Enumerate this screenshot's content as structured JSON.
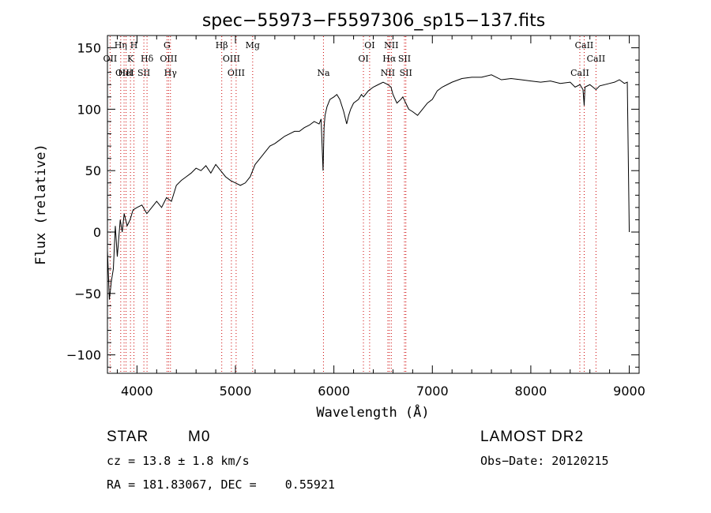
{
  "chart_data": {
    "type": "line",
    "title": "spec−55973−F5597306_sp15−137.fits",
    "xlabel": "Wavelength (Å)",
    "ylabel": "Flux (relative)",
    "xlim": [
      3700,
      9100
    ],
    "ylim": [
      -115,
      160
    ],
    "x_ticks": [
      4000,
      5000,
      6000,
      7000,
      8000,
      9000
    ],
    "y_ticks": [
      -100,
      -50,
      0,
      50,
      100,
      150
    ],
    "y_tick_labels": [
      "−100",
      "−50",
      "0",
      "50",
      "100",
      "150"
    ],
    "grid": false,
    "colors": {
      "line": "#000000",
      "marker": "#cc0000"
    },
    "series": [
      {
        "x": [
          3700,
          3720,
          3740,
          3760,
          3780,
          3800,
          3830,
          3850,
          3870,
          3900,
          3930,
          3960,
          4000,
          4050,
          4100,
          4150,
          4200,
          4250,
          4300,
          4350,
          4400,
          4450,
          4500,
          4550,
          4600,
          4650,
          4700,
          4750,
          4800,
          4850,
          4900,
          4950,
          5000,
          5050,
          5100,
          5150,
          5200,
          5250,
          5300,
          5350,
          5400,
          5450,
          5500,
          5550,
          5600,
          5650,
          5700,
          5750,
          5800,
          5850,
          5870,
          5890,
          5900,
          5910,
          5930,
          5960,
          6000,
          6030,
          6060,
          6100,
          6130,
          6150,
          6170,
          6200,
          6250,
          6280,
          6300,
          6350,
          6400,
          6450,
          6500,
          6550,
          6580,
          6600,
          6640,
          6680,
          6700,
          6730,
          6760,
          6800,
          6850,
          6900,
          6950,
          7000,
          7050,
          7100,
          7150,
          7200,
          7300,
          7400,
          7500,
          7600,
          7700,
          7800,
          7900,
          8000,
          8100,
          8200,
          8300,
          8400,
          8450,
          8500,
          8530,
          8542,
          8550,
          8600,
          8662,
          8700,
          8800,
          8850,
          8900,
          8950,
          8980,
          9000
        ],
        "y": [
          -15,
          -55,
          -40,
          -30,
          5,
          -20,
          10,
          0,
          15,
          5,
          10,
          18,
          20,
          22,
          15,
          20,
          25,
          20,
          28,
          25,
          38,
          42,
          45,
          48,
          52,
          50,
          54,
          48,
          55,
          50,
          45,
          42,
          40,
          38,
          40,
          45,
          55,
          60,
          65,
          70,
          72,
          75,
          78,
          80,
          82,
          82,
          85,
          87,
          90,
          88,
          92,
          50,
          85,
          95,
          102,
          108,
          110,
          112,
          108,
          98,
          88,
          95,
          100,
          105,
          108,
          112,
          110,
          115,
          118,
          120,
          122,
          120,
          118,
          112,
          105,
          108,
          110,
          105,
          100,
          98,
          95,
          100,
          105,
          108,
          115,
          118,
          120,
          122,
          125,
          126,
          126,
          128,
          124,
          125,
          124,
          123,
          122,
          123,
          121,
          122,
          118,
          120,
          116,
          103,
          118,
          120,
          116,
          119,
          121,
          122,
          124,
          121,
          122,
          0
        ]
      }
    ],
    "emission_lines": [
      {
        "name": "OII",
        "wavelength": 3727,
        "row": 2
      },
      {
        "name": "Hη",
        "wavelength": 3835,
        "row": 1
      },
      {
        "name": "OIII",
        "wavelength": 3869,
        "row": 3
      },
      {
        "name": "HeI",
        "wavelength": 3889,
        "row": 3
      },
      {
        "name": "K",
        "wavelength": 3934,
        "row": 2
      },
      {
        "name": "H",
        "wavelength": 3969,
        "row": 1
      },
      {
        "name": "SII",
        "wavelength": 4070,
        "row": 3
      },
      {
        "name": "Hδ",
        "wavelength": 4102,
        "row": 2
      },
      {
        "name": "G",
        "wavelength": 4305,
        "row": 1
      },
      {
        "name": "OIII",
        "wavelength": 4321,
        "row": 2
      },
      {
        "name": "Hγ",
        "wavelength": 4340,
        "row": 3
      },
      {
        "name": "Hβ",
        "wavelength": 4861,
        "row": 1
      },
      {
        "name": "OIII",
        "wavelength": 4959,
        "row": 2
      },
      {
        "name": "OIII",
        "wavelength": 5007,
        "row": 3
      },
      {
        "name": "Mg",
        "wavelength": 5175,
        "row": 1
      },
      {
        "name": "Na",
        "wavelength": 5894,
        "row": 3
      },
      {
        "name": "OI",
        "wavelength": 6300,
        "row": 2
      },
      {
        "name": "OI",
        "wavelength": 6363,
        "row": 1
      },
      {
        "name": "NII",
        "wavelength": 6548,
        "row": 3
      },
      {
        "name": "Hα",
        "wavelength": 6563,
        "row": 2
      },
      {
        "name": "NII",
        "wavelength": 6583,
        "row": 1
      },
      {
        "name": "SII",
        "wavelength": 6717,
        "row": 2
      },
      {
        "name": "SII",
        "wavelength": 6731,
        "row": 3
      },
      {
        "name": "CaII",
        "wavelength": 8498,
        "row": 3
      },
      {
        "name": "CaII",
        "wavelength": 8542,
        "row": 1
      },
      {
        "name": "CaII",
        "wavelength": 8662,
        "row": 2
      }
    ]
  },
  "info": {
    "object_type": "STAR",
    "subclass": "M0",
    "survey": "LAMOST DR2",
    "cz": "cz = 13.8 ± 1.8 km/s",
    "obs_date": "Obs−Date: 20120215",
    "coords": "RA = 181.83067, DEC =    0.55921"
  }
}
